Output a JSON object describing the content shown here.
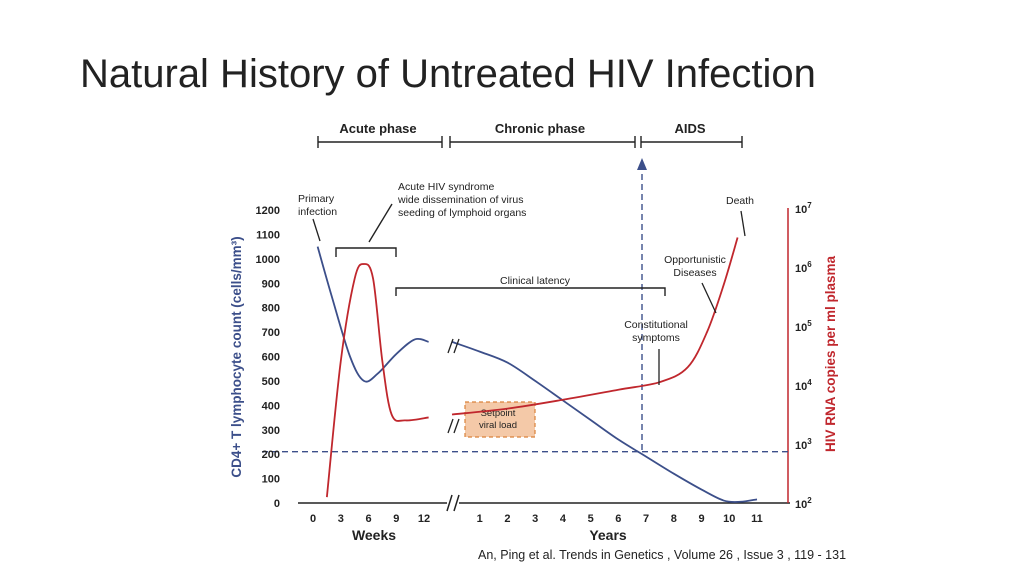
{
  "slide": {
    "title": "Natural History of Untreated HIV Infection",
    "citation": "An, Ping et al. Trends in Genetics , Volume 26 , Issue 3 , 119 - 131"
  },
  "colors": {
    "cd4": "#3c4f8a",
    "rna": "#c0272d",
    "box_fill": "#f4c9a8",
    "box_border": "#d9823a",
    "grid_dash": "#3c4f8a"
  },
  "chart_data": {
    "type": "line",
    "phases": [
      "Acute phase",
      "Chronic phase",
      "AIDS"
    ],
    "x_ticks_weeks": [
      "0",
      "3",
      "6",
      "9",
      "12"
    ],
    "x_ticks_years": [
      "1",
      "2",
      "3",
      "4",
      "5",
      "6",
      "7",
      "8",
      "9",
      "10",
      "11"
    ],
    "xlabel_weeks": "Weeks",
    "xlabel_years": "Years",
    "ylabel_left": "CD4+ T lymphocyte count (cells/mm³)",
    "ylabel_right": "HIV RNA copies per ml plasma",
    "yticks_left": [
      "0",
      "100",
      "200",
      "300",
      "400",
      "500",
      "600",
      "700",
      "800",
      "900",
      "1000",
      "1100",
      "1200"
    ],
    "yticks_right": [
      {
        "base": "10",
        "exp": "2"
      },
      {
        "base": "10",
        "exp": "3"
      },
      {
        "base": "10",
        "exp": "4"
      },
      {
        "base": "10",
        "exp": "5"
      },
      {
        "base": "10",
        "exp": "6"
      },
      {
        "base": "10",
        "exp": "7"
      }
    ],
    "ylim_left": [
      0,
      1200
    ],
    "ylim_right_log10": [
      2,
      7
    ],
    "annotations": {
      "primary_infection": [
        "Primary",
        "infection"
      ],
      "acute_syndrome": [
        "Acute HIV syndrome",
        "wide dissemination of virus",
        "seeding of lymphoid organs"
      ],
      "clinical_latency": "Clinical latency",
      "setpoint": [
        "Setpoint",
        "viral load"
      ],
      "constitutional": [
        "Constitutional",
        "symptoms"
      ],
      "opportunistic": [
        "Opportunistic",
        "Diseases"
      ],
      "death": "Death"
    },
    "threshold_cd4": 210,
    "series": [
      {
        "key": "cd4",
        "axis": "left",
        "points": [
          {
            "seg": "weeks",
            "x": 0.5,
            "y": 1050
          },
          {
            "seg": "weeks",
            "x": 2,
            "y": 850
          },
          {
            "seg": "weeks",
            "x": 4,
            "y": 600
          },
          {
            "seg": "weeks",
            "x": 5.5,
            "y": 500
          },
          {
            "seg": "weeks",
            "x": 7,
            "y": 530
          },
          {
            "seg": "weeks",
            "x": 9,
            "y": 610
          },
          {
            "seg": "weeks",
            "x": 11,
            "y": 670
          },
          {
            "seg": "weeks",
            "x": 12.5,
            "y": 660
          },
          {
            "seg": "break",
            "x": 0,
            "y": null
          },
          {
            "seg": "years",
            "x": 0,
            "y": 660
          },
          {
            "seg": "years",
            "x": 1,
            "y": 620
          },
          {
            "seg": "years",
            "x": 2,
            "y": 575
          },
          {
            "seg": "years",
            "x": 3,
            "y": 500
          },
          {
            "seg": "years",
            "x": 4,
            "y": 420
          },
          {
            "seg": "years",
            "x": 5,
            "y": 340
          },
          {
            "seg": "years",
            "x": 6,
            "y": 260
          },
          {
            "seg": "years",
            "x": 7,
            "y": 190
          },
          {
            "seg": "years",
            "x": 8,
            "y": 120
          },
          {
            "seg": "years",
            "x": 9,
            "y": 55
          },
          {
            "seg": "years",
            "x": 9.8,
            "y": 10
          },
          {
            "seg": "years",
            "x": 10.4,
            "y": 5
          },
          {
            "seg": "years",
            "x": 11,
            "y": 15
          }
        ]
      },
      {
        "key": "rna",
        "axis": "right",
        "points": [
          {
            "seg": "weeks",
            "x": 1.5,
            "y": 2.1
          },
          {
            "seg": "weeks",
            "x": 3,
            "y": 4.4
          },
          {
            "seg": "weeks",
            "x": 4.5,
            "y": 5.8
          },
          {
            "seg": "weeks",
            "x": 5.5,
            "y": 6.05
          },
          {
            "seg": "weeks",
            "x": 6.5,
            "y": 5.8
          },
          {
            "seg": "weeks",
            "x": 7.5,
            "y": 4.4
          },
          {
            "seg": "weeks",
            "x": 8.5,
            "y": 3.5
          },
          {
            "seg": "weeks",
            "x": 10,
            "y": 3.4
          },
          {
            "seg": "weeks",
            "x": 12.5,
            "y": 3.45
          },
          {
            "seg": "break",
            "x": 0,
            "y": null
          },
          {
            "seg": "years",
            "x": 0,
            "y": 3.5
          },
          {
            "seg": "years",
            "x": 2,
            "y": 3.6
          },
          {
            "seg": "years",
            "x": 4,
            "y": 3.75
          },
          {
            "seg": "years",
            "x": 6,
            "y": 3.92
          },
          {
            "seg": "years",
            "x": 7.5,
            "y": 4.05
          },
          {
            "seg": "years",
            "x": 8.5,
            "y": 4.3
          },
          {
            "seg": "years",
            "x": 9.2,
            "y": 4.9
          },
          {
            "seg": "years",
            "x": 9.8,
            "y": 5.7
          },
          {
            "seg": "years",
            "x": 10.3,
            "y": 6.5
          }
        ]
      }
    ]
  }
}
